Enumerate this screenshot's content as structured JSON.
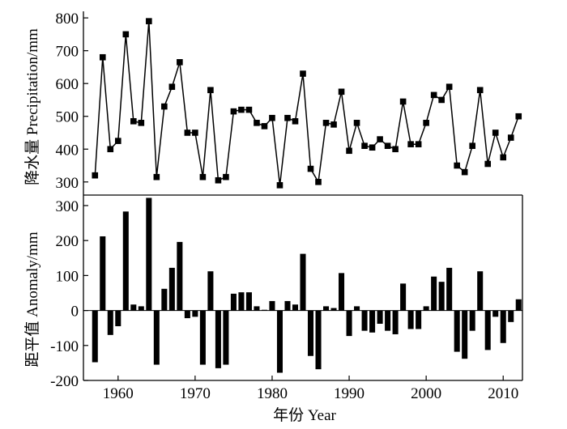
{
  "chart_data": [
    {
      "type": "line",
      "ylabel": "降水量 Precipitation/mm",
      "ylim": [
        260,
        820
      ],
      "yticks": [
        300,
        400,
        500,
        600,
        700,
        800
      ],
      "xlim": [
        1955.5,
        2012.5
      ],
      "series": [
        {
          "marker": "square",
          "color": "#000000",
          "x": [
            1957,
            1958,
            1959,
            1960,
            1961,
            1962,
            1963,
            1964,
            1965,
            1966,
            1967,
            1968,
            1969,
            1970,
            1971,
            1972,
            1973,
            1974,
            1975,
            1976,
            1977,
            1978,
            1979,
            1980,
            1981,
            1982,
            1983,
            1984,
            1985,
            1986,
            1987,
            1988,
            1989,
            1990,
            1991,
            1992,
            1993,
            1994,
            1995,
            1996,
            1997,
            1998,
            1999,
            2000,
            2001,
            2002,
            2003,
            2004,
            2005,
            2006,
            2007,
            2008,
            2009,
            2010,
            2011,
            2012
          ],
          "values": [
            320,
            680,
            400,
            425,
            750,
            485,
            480,
            790,
            315,
            530,
            590,
            665,
            450,
            450,
            315,
            580,
            305,
            315,
            515,
            520,
            520,
            480,
            470,
            495,
            290,
            495,
            485,
            630,
            340,
            300,
            480,
            475,
            575,
            395,
            480,
            410,
            405,
            430,
            410,
            400,
            545,
            415,
            415,
            480,
            565,
            550,
            590,
            350,
            330,
            410,
            580,
            355,
            450,
            375,
            435,
            500
          ]
        }
      ]
    },
    {
      "type": "bar",
      "ylabel": "距平值 Anomaly/mm",
      "xlabel": "年份 Year",
      "ylim": [
        -200,
        330
      ],
      "yticks": [
        -200,
        -100,
        0,
        100,
        200,
        300
      ],
      "xlim": [
        1955.5,
        2012.5
      ],
      "xticks": [
        1960,
        1970,
        1980,
        1990,
        2000,
        2010
      ],
      "series": [
        {
          "color": "#000000",
          "x": [
            1957,
            1958,
            1959,
            1960,
            1961,
            1962,
            1963,
            1964,
            1965,
            1966,
            1967,
            1968,
            1969,
            1970,
            1971,
            1972,
            1973,
            1974,
            1975,
            1976,
            1977,
            1978,
            1979,
            1980,
            1981,
            1982,
            1983,
            1984,
            1985,
            1986,
            1987,
            1988,
            1989,
            1990,
            1991,
            1992,
            1993,
            1994,
            1995,
            1996,
            1997,
            1998,
            1999,
            2000,
            2001,
            2002,
            2003,
            2004,
            2005,
            2006,
            2007,
            2008,
            2009,
            2010,
            2011,
            2012
          ],
          "values": [
            -148,
            212,
            -70,
            -45,
            283,
            17,
            12,
            322,
            -155,
            62,
            122,
            196,
            -22,
            -18,
            -155,
            112,
            -165,
            -155,
            48,
            52,
            52,
            12,
            2,
            27,
            -178,
            27,
            17,
            162,
            -130,
            -168,
            12,
            7,
            107,
            -73,
            12,
            -58,
            -63,
            -38,
            -58,
            -68,
            77,
            -53,
            -53,
            12,
            97,
            82,
            122,
            -118,
            -138,
            -58,
            112,
            -113,
            -18,
            -93,
            -33,
            32
          ]
        }
      ]
    }
  ]
}
